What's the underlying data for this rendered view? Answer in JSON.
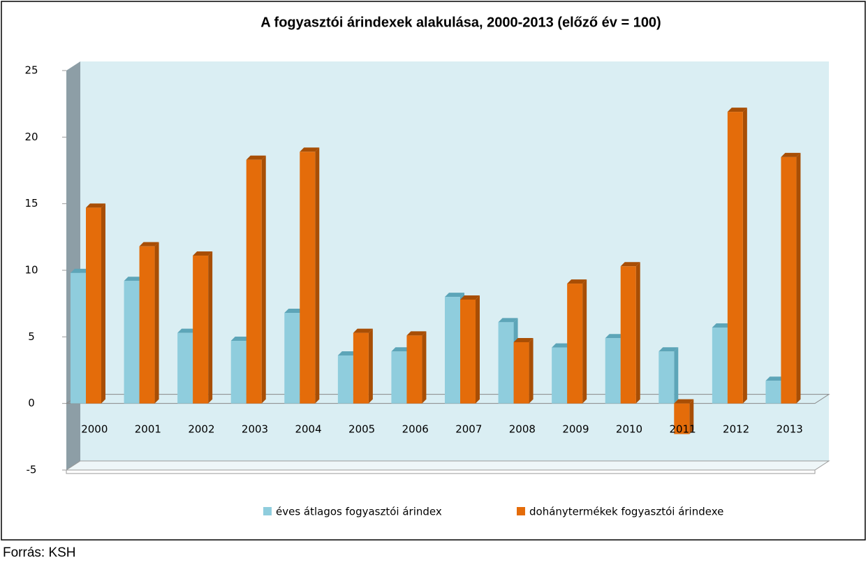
{
  "chart_data": {
    "type": "bar",
    "title": "A fogyasztói árindexek alakulása, 2000-2013 (előző év = 100)",
    "source": "Forrás: KSH",
    "categories": [
      "2000",
      "2001",
      "2002",
      "2003",
      "2004",
      "2005",
      "2006",
      "2007",
      "2008",
      "2009",
      "2010",
      "2011",
      "2012",
      "2013"
    ],
    "series": [
      {
        "name": "éves átlagos fogyasztói árindex",
        "color": "#8fcddd",
        "values": [
          9.8,
          9.2,
          5.3,
          4.7,
          6.8,
          3.6,
          3.9,
          8.0,
          6.1,
          4.2,
          4.9,
          3.9,
          5.7,
          1.7
        ]
      },
      {
        "name": "dohánytermékek fogyasztói árindexe",
        "color": "#e46c0a",
        "values": [
          14.7,
          11.8,
          11.1,
          18.3,
          18.9,
          5.3,
          5.1,
          7.8,
          4.6,
          9.0,
          10.3,
          -2.3,
          21.9,
          18.5
        ]
      }
    ],
    "ylim": [
      -5,
      25
    ],
    "yticks": [
      -5,
      0,
      5,
      10,
      15,
      20,
      25
    ],
    "legend": "bottom"
  }
}
